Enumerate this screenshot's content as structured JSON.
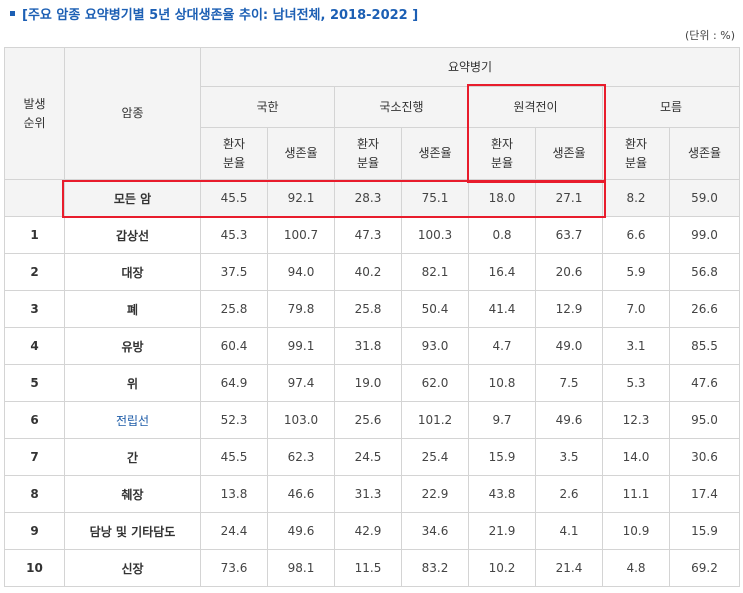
{
  "title": "[주요 암종 요약병기별 5년 상대생존율 추이: 남녀전체, 2018-2022 ]",
  "unit": "(단위 : %)",
  "highlight_color": "#e81c2c",
  "header": {
    "rank": "발생\n순위",
    "cancer": "암종",
    "stage_group": "요약병기",
    "stages": [
      "국한",
      "국소진행",
      "원격전이",
      "모름"
    ],
    "sub": {
      "share": "환자\n분율",
      "survival": "생존율"
    }
  },
  "rows": [
    {
      "rank": "",
      "cancer": "모든 암",
      "values": [
        "45.5",
        "92.1",
        "28.3",
        "75.1",
        "18.0",
        "27.1",
        "8.2",
        "59.0"
      ]
    },
    {
      "rank": "1",
      "cancer": "갑상선",
      "values": [
        "45.3",
        "100.7",
        "47.3",
        "100.3",
        "0.8",
        "63.7",
        "6.6",
        "99.0"
      ]
    },
    {
      "rank": "2",
      "cancer": "대장",
      "values": [
        "37.5",
        "94.0",
        "40.2",
        "82.1",
        "16.4",
        "20.6",
        "5.9",
        "56.8"
      ]
    },
    {
      "rank": "3",
      "cancer": "폐",
      "values": [
        "25.8",
        "79.8",
        "25.8",
        "50.4",
        "41.4",
        "12.9",
        "7.0",
        "26.6"
      ]
    },
    {
      "rank": "4",
      "cancer": "유방",
      "values": [
        "60.4",
        "99.1",
        "31.8",
        "93.0",
        "4.7",
        "49.0",
        "3.1",
        "85.5"
      ]
    },
    {
      "rank": "5",
      "cancer": "위",
      "values": [
        "64.9",
        "97.4",
        "19.0",
        "62.0",
        "10.8",
        "7.5",
        "5.3",
        "47.6"
      ]
    },
    {
      "rank": "6",
      "cancer": "전립선",
      "values": [
        "52.3",
        "103.0",
        "25.6",
        "101.2",
        "9.7",
        "49.6",
        "12.3",
        "95.0"
      ]
    },
    {
      "rank": "7",
      "cancer": "간",
      "values": [
        "45.5",
        "62.3",
        "24.5",
        "25.4",
        "15.9",
        "3.5",
        "14.0",
        "30.6"
      ]
    },
    {
      "rank": "8",
      "cancer": "췌장",
      "values": [
        "13.8",
        "46.6",
        "31.3",
        "22.9",
        "43.8",
        "2.6",
        "11.1",
        "17.4"
      ]
    },
    {
      "rank": "9",
      "cancer": "담낭 및 기타담도",
      "values": [
        "24.4",
        "49.6",
        "42.9",
        "34.6",
        "21.9",
        "4.1",
        "10.9",
        "15.9"
      ]
    },
    {
      "rank": "10",
      "cancer": "신장",
      "values": [
        "73.6",
        "98.1",
        "11.5",
        "83.2",
        "10.2",
        "21.4",
        "4.8",
        "69.2"
      ]
    }
  ]
}
